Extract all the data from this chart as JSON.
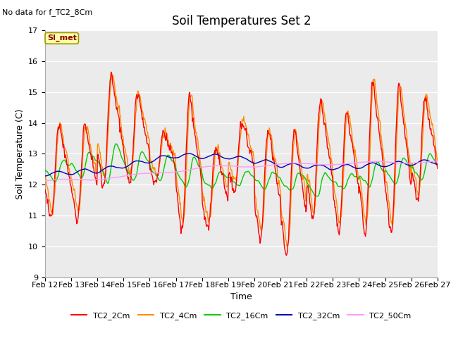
{
  "title": "Soil Temperatures Set 2",
  "xlabel": "Time",
  "ylabel": "Soil Temperature (C)",
  "no_data_text": "No data for f_TC2_8Cm",
  "annotation_text": "SI_met",
  "ylim": [
    9.0,
    17.0
  ],
  "yticks": [
    9.0,
    10.0,
    11.0,
    12.0,
    13.0,
    14.0,
    15.0,
    16.0,
    17.0
  ],
  "date_labels": [
    "Feb 12",
    "Feb 13",
    "Feb 14",
    "Feb 15",
    "Feb 16",
    "Feb 17",
    "Feb 18",
    "Feb 19",
    "Feb 20",
    "Feb 21",
    "Feb 22",
    "Feb 23",
    "Feb 24",
    "Feb 25",
    "Feb 26",
    "Feb 27"
  ],
  "series": {
    "TC2_2Cm": {
      "color": "#FF0000",
      "lw": 1.0
    },
    "TC2_4Cm": {
      "color": "#FF8C00",
      "lw": 1.0
    },
    "TC2_16Cm": {
      "color": "#00CC00",
      "lw": 1.0
    },
    "TC2_32Cm": {
      "color": "#0000BB",
      "lw": 1.0
    },
    "TC2_50Cm": {
      "color": "#FF99FF",
      "lw": 1.0
    }
  },
  "bg_color": "#EBEBEB",
  "fig_bg": "#FFFFFF",
  "title_fontsize": 12,
  "label_fontsize": 9,
  "tick_fontsize": 8
}
